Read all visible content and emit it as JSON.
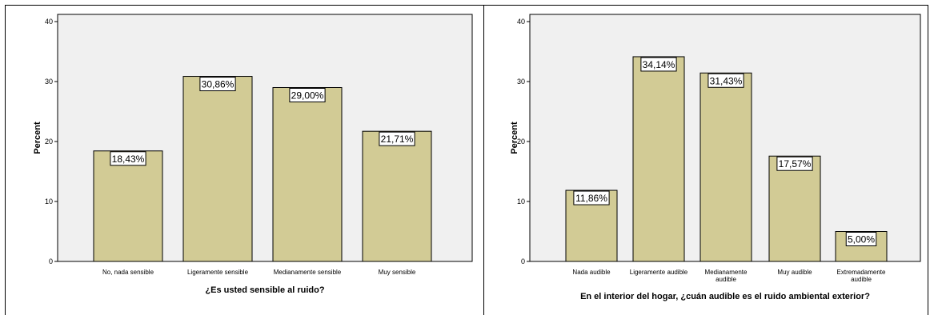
{
  "chart_data": [
    {
      "type": "bar",
      "categories": [
        [
          "No,  nada sensible"
        ],
        [
          "Ligeramente sensible"
        ],
        [
          "Medianamente sensible"
        ],
        [
          "Muy sensible"
        ]
      ],
      "values": [
        18.43,
        30.86,
        29.0,
        21.71
      ],
      "data_labels": [
        "18,43%",
        "30,86%",
        "29,00%",
        "21,71%"
      ],
      "xlabel": "¿Es usted sensible al ruido?",
      "ylabel": "Percent",
      "ylim": [
        0,
        40
      ],
      "yticks": [
        "0",
        "10",
        "20",
        "30",
        "40"
      ],
      "bar_color": "#d2cb95",
      "plot_background": "#f0f0f0",
      "grid": false
    },
    {
      "type": "bar",
      "categories": [
        [
          "Nada audible"
        ],
        [
          "Ligeramente audible"
        ],
        [
          "Medianamente",
          "audible"
        ],
        [
          "Muy audible"
        ],
        [
          "Extremadamente",
          "audible"
        ]
      ],
      "values": [
        11.86,
        34.14,
        31.43,
        17.57,
        5.0
      ],
      "data_labels": [
        "11,86%",
        "34,14%",
        "31,43%",
        "17,57%",
        "5,00%"
      ],
      "xlabel": "En el interior del hogar, ¿cuán audible es el ruido ambiental exterior?",
      "ylabel": "Percent",
      "ylim": [
        0,
        40
      ],
      "yticks": [
        "0",
        "10",
        "20",
        "30",
        "40"
      ],
      "bar_color": "#d2cb95",
      "plot_background": "#f0f0f0",
      "grid": false
    }
  ]
}
